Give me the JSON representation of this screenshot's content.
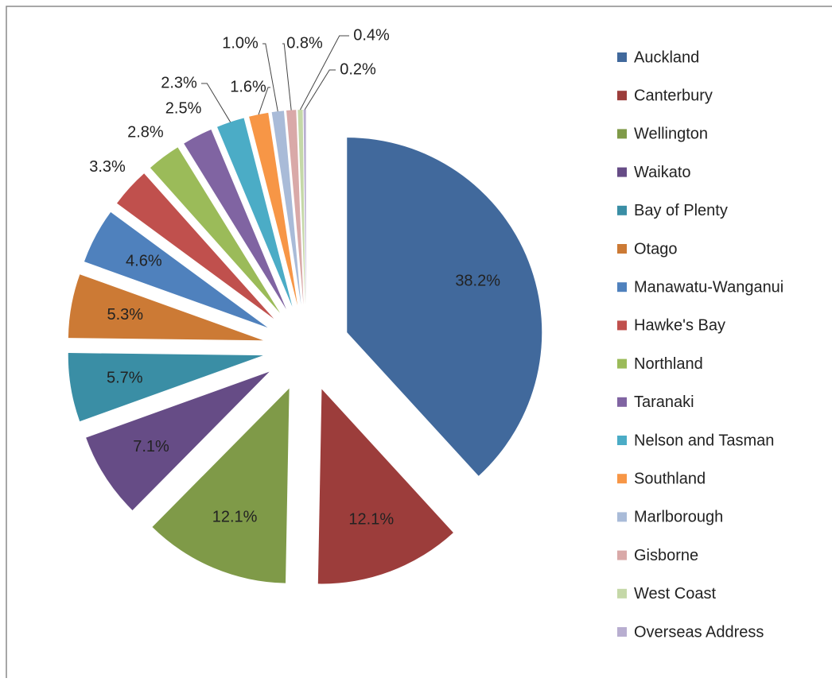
{
  "chart_data": {
    "type": "pie",
    "categories": [
      "Auckland",
      "Canterbury",
      "Wellington",
      "Waikato",
      "Bay of Plenty",
      "Otago",
      "Manawatu-Wanganui",
      "Hawke's Bay",
      "Northland",
      "Taranaki",
      "Nelson and Tasman",
      "Southland",
      "Marlborough",
      "Gisborne",
      "West Coast",
      "Overseas Address"
    ],
    "values": [
      38.2,
      12.1,
      12.1,
      7.1,
      5.7,
      5.3,
      4.6,
      3.3,
      2.8,
      2.5,
      2.3,
      1.6,
      1.0,
      0.8,
      0.4,
      0.2
    ],
    "value_labels": [
      "38.2%",
      "12.1%",
      "12.1%",
      "7.1%",
      "5.7%",
      "5.3%",
      "4.6%",
      "3.3%",
      "2.8%",
      "2.5%",
      "2.3%",
      "1.6%",
      "1.0%",
      "0.8%",
      "0.4%",
      "0.2%"
    ],
    "colors": [
      "#41699c",
      "#9c3d3b",
      "#7f9a48",
      "#664c86",
      "#3a8ea5",
      "#cc7a35",
      "#4f81bd",
      "#c0504d",
      "#9bbb59",
      "#8064a2",
      "#4bacc6",
      "#f79646",
      "#a9bbd8",
      "#d9a9a8",
      "#c5d8a8",
      "#b8aed0"
    ],
    "legend": "right"
  }
}
